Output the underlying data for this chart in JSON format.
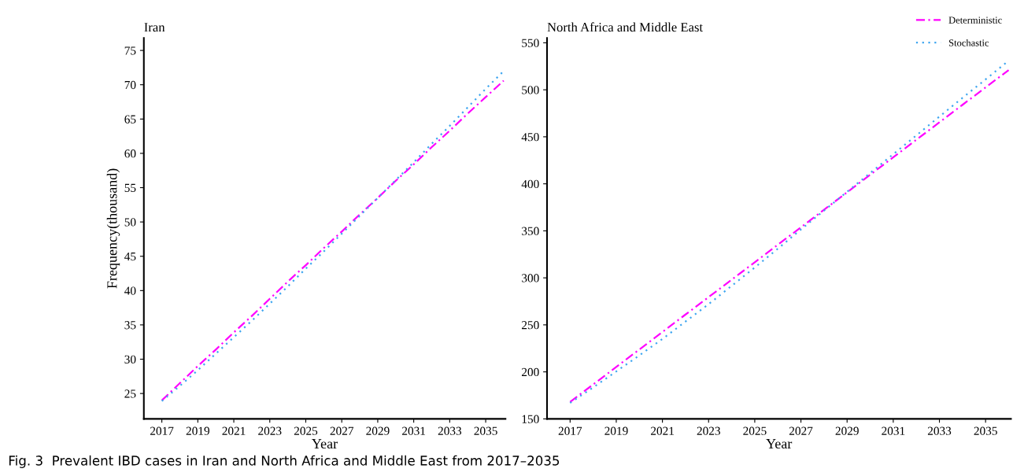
{
  "chart_data": [
    {
      "type": "line",
      "title": "Iran",
      "xlabel": "Year",
      "ylabel": "Frequency(thousand)",
      "x": [
        2017,
        2018,
        2019,
        2020,
        2021,
        2022,
        2023,
        2024,
        2025,
        2026,
        2027,
        2028,
        2029,
        2030,
        2031,
        2032,
        2033,
        2034,
        2035,
        2036
      ],
      "series": [
        {
          "color": "#ff00ff",
          "line_style": "dashed",
          "values": [
            24.0,
            26.5,
            29.0,
            31.4,
            33.9,
            36.3,
            38.8,
            41.3,
            43.7,
            46.2,
            48.6,
            51.1,
            53.5,
            56.0,
            58.4,
            60.9,
            63.3,
            65.8,
            68.2,
            70.6
          ]
        },
        {
          "color": "#3fa6f0",
          "line_style": "dotted",
          "values": [
            23.9,
            26.1,
            28.4,
            30.8,
            33.2,
            35.6,
            38.1,
            40.6,
            43.2,
            45.7,
            48.3,
            50.9,
            53.5,
            56.1,
            58.7,
            61.4,
            64.0,
            66.7,
            69.4,
            72.0
          ]
        }
      ],
      "xlim": [
        2016,
        2036.1
      ],
      "xticks": [
        2017,
        2019,
        2021,
        2023,
        2025,
        2027,
        2029,
        2031,
        2033,
        2035
      ],
      "ylim": [
        21.3,
        76.8
      ],
      "yticks": [
        25,
        30,
        35,
        40,
        45,
        50,
        55,
        60,
        65,
        70,
        75
      ],
      "grid": false,
      "legend": false,
      "marker": "none",
      "annotations": [
        "Fig. 3  Prevalent IBD cases in Iran and North Africa and Middle East from 2017–2035"
      ]
    },
    {
      "type": "line",
      "title": "North Africa and Middle East",
      "xlabel": "Year",
      "x": [
        2017,
        2018,
        2019,
        2020,
        2021,
        2022,
        2023,
        2024,
        2025,
        2026,
        2027,
        2028,
        2029,
        2030,
        2031,
        2032,
        2033,
        2034,
        2035,
        2036
      ],
      "series": [
        {
          "name": "Deterministic",
          "color": "#ff00ff",
          "line_style": "dashed",
          "values": [
            168,
            186.6,
            205.2,
            223.8,
            242.4,
            261,
            279.5,
            298,
            316.6,
            335.2,
            353.8,
            372.4,
            391,
            409.6,
            428.2,
            446.8,
            465.4,
            484,
            502.5,
            521
          ]
        },
        {
          "name": "Stochastic",
          "color": "#3fa6f0",
          "line_style": "dotted",
          "values": [
            167,
            183.5,
            200.5,
            217.5,
            235,
            253.5,
            272,
            291.5,
            311,
            331,
            351.5,
            371.5,
            391.5,
            411.5,
            431.5,
            451.5,
            471.5,
            491.5,
            511,
            531
          ]
        }
      ],
      "xlim": [
        2016,
        2036.1
      ],
      "xticks": [
        2017,
        2019,
        2021,
        2023,
        2025,
        2027,
        2029,
        2031,
        2033,
        2035
      ],
      "ylim": [
        150,
        555
      ],
      "yticks": [
        150,
        200,
        250,
        300,
        350,
        400,
        450,
        500,
        550
      ],
      "grid": false,
      "legend": "top right",
      "marker": "none"
    }
  ]
}
